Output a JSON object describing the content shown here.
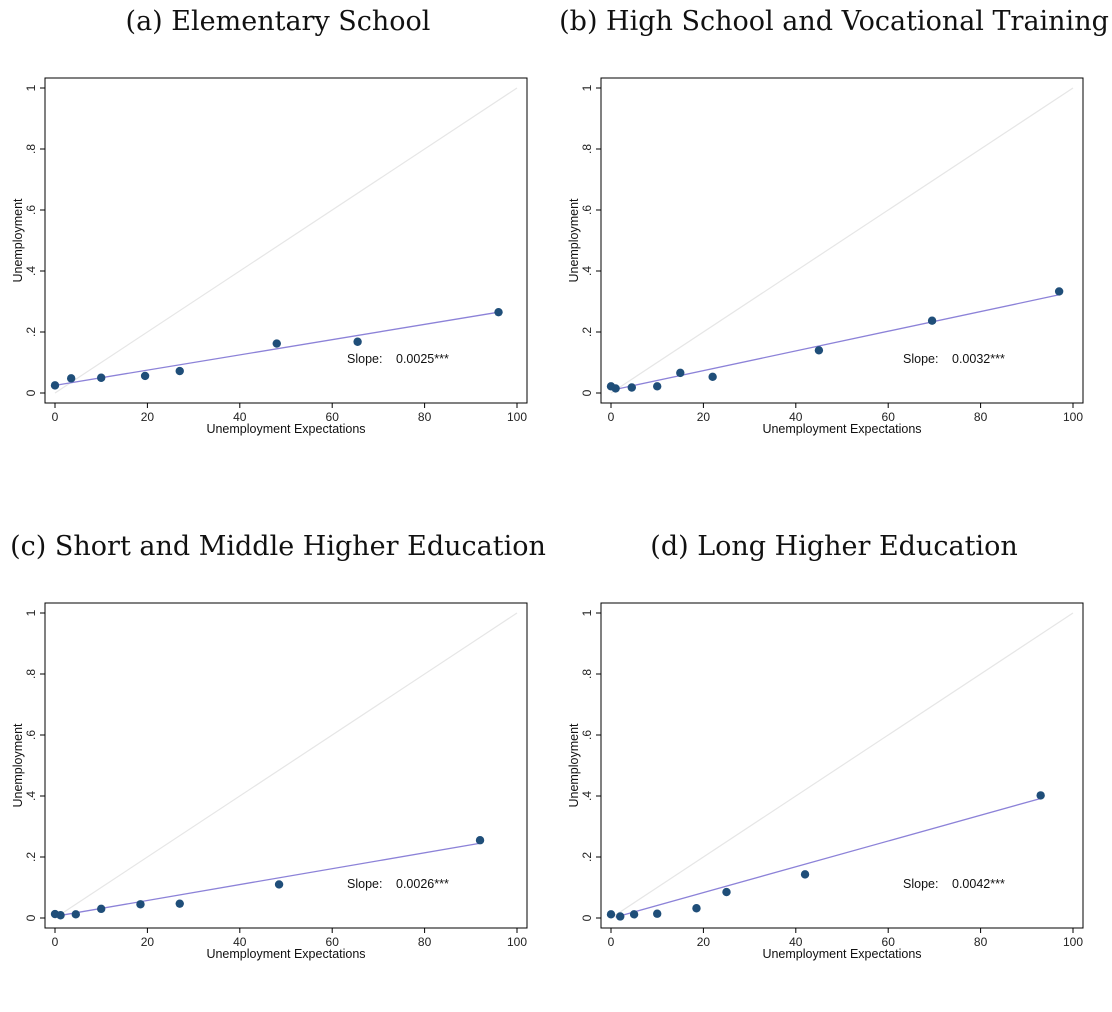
{
  "chart_data": [
    {
      "type": "scatter",
      "title": "(a) Elementary School",
      "xlabel": "Unemployment Expectations",
      "ylabel": "Unemployment",
      "xlim": [
        0,
        100
      ],
      "ylim": [
        0,
        1
      ],
      "xticks": [
        "0",
        "20",
        "40",
        "60",
        "80",
        "100"
      ],
      "yticks": [
        "0",
        ".2",
        ".4",
        ".6",
        ".8",
        "1"
      ],
      "points": [
        {
          "x": 0,
          "y": 0.025
        },
        {
          "x": 3.5,
          "y": 0.048
        },
        {
          "x": 10,
          "y": 0.05
        },
        {
          "x": 19.5,
          "y": 0.056
        },
        {
          "x": 27,
          "y": 0.072
        },
        {
          "x": 48,
          "y": 0.162
        },
        {
          "x": 65.5,
          "y": 0.168
        },
        {
          "x": 96,
          "y": 0.265
        }
      ],
      "fit_line": {
        "x": [
          0,
          96
        ],
        "y": [
          0.025,
          0.265
        ]
      },
      "slope_label": "Slope:",
      "slope_value": "0.0025***",
      "colors": {
        "points": "#1f4e79",
        "fit": "#8c82d8",
        "diagonal": "#e6e6e6"
      }
    },
    {
      "type": "scatter",
      "title": "(b) High School and Vocational Training",
      "xlabel": "Unemployment Expectations",
      "ylabel": "Unemployment",
      "xlim": [
        0,
        100
      ],
      "ylim": [
        0,
        1
      ],
      "xticks": [
        "0",
        "20",
        "40",
        "60",
        "80",
        "100"
      ],
      "yticks": [
        "0",
        ".2",
        ".4",
        ".6",
        ".8",
        "1"
      ],
      "points": [
        {
          "x": 0,
          "y": 0.022
        },
        {
          "x": 1,
          "y": 0.015
        },
        {
          "x": 4.5,
          "y": 0.018
        },
        {
          "x": 10,
          "y": 0.022
        },
        {
          "x": 15,
          "y": 0.066
        },
        {
          "x": 22,
          "y": 0.053
        },
        {
          "x": 45,
          "y": 0.14
        },
        {
          "x": 69.5,
          "y": 0.237
        },
        {
          "x": 97,
          "y": 0.333
        }
      ],
      "fit_line": {
        "x": [
          1,
          97
        ],
        "y": [
          0.012,
          0.322
        ]
      },
      "slope_label": "Slope:",
      "slope_value": "0.0032***",
      "colors": {
        "points": "#1f4e79",
        "fit": "#8c82d8",
        "diagonal": "#e6e6e6"
      }
    },
    {
      "type": "scatter",
      "title": "(c) Short and Middle Higher Education",
      "xlabel": "Unemployment Expectations",
      "ylabel": "Unemployment",
      "xlim": [
        0,
        100
      ],
      "ylim": [
        0,
        1
      ],
      "xticks": [
        "0",
        "20",
        "40",
        "60",
        "80",
        "100"
      ],
      "yticks": [
        "0",
        ".2",
        ".4",
        ".6",
        ".8",
        "1"
      ],
      "points": [
        {
          "x": 0,
          "y": 0.013
        },
        {
          "x": 1.2,
          "y": 0.009
        },
        {
          "x": 4.5,
          "y": 0.012
        },
        {
          "x": 10,
          "y": 0.03
        },
        {
          "x": 18.5,
          "y": 0.045
        },
        {
          "x": 27,
          "y": 0.047
        },
        {
          "x": 48.5,
          "y": 0.11
        },
        {
          "x": 92,
          "y": 0.255
        }
      ],
      "fit_line": {
        "x": [
          1,
          92
        ],
        "y": [
          0.008,
          0.245
        ]
      },
      "slope_label": "Slope:",
      "slope_value": "0.0026***",
      "colors": {
        "points": "#1f4e79",
        "fit": "#8c82d8",
        "diagonal": "#e6e6e6"
      }
    },
    {
      "type": "scatter",
      "title": "(d) Long Higher Education",
      "xlabel": "Unemployment Expectations",
      "ylabel": "Unemployment",
      "xlim": [
        0,
        100
      ],
      "ylim": [
        0,
        1
      ],
      "xticks": [
        "0",
        "20",
        "40",
        "60",
        "80",
        "100"
      ],
      "yticks": [
        "0",
        ".2",
        ".4",
        ".6",
        ".8",
        "1"
      ],
      "points": [
        {
          "x": 0,
          "y": 0.012
        },
        {
          "x": 2,
          "y": 0.005
        },
        {
          "x": 5,
          "y": 0.012
        },
        {
          "x": 10,
          "y": 0.014
        },
        {
          "x": 18.5,
          "y": 0.032
        },
        {
          "x": 25,
          "y": 0.085
        },
        {
          "x": 42,
          "y": 0.143
        },
        {
          "x": 93,
          "y": 0.402
        }
      ],
      "fit_line": {
        "x": [
          1,
          93
        ],
        "y": [
          0.003,
          0.392
        ]
      },
      "slope_label": "Slope:",
      "slope_value": "0.0042***",
      "colors": {
        "points": "#1f4e79",
        "fit": "#8c82d8",
        "diagonal": "#e6e6e6"
      }
    }
  ]
}
